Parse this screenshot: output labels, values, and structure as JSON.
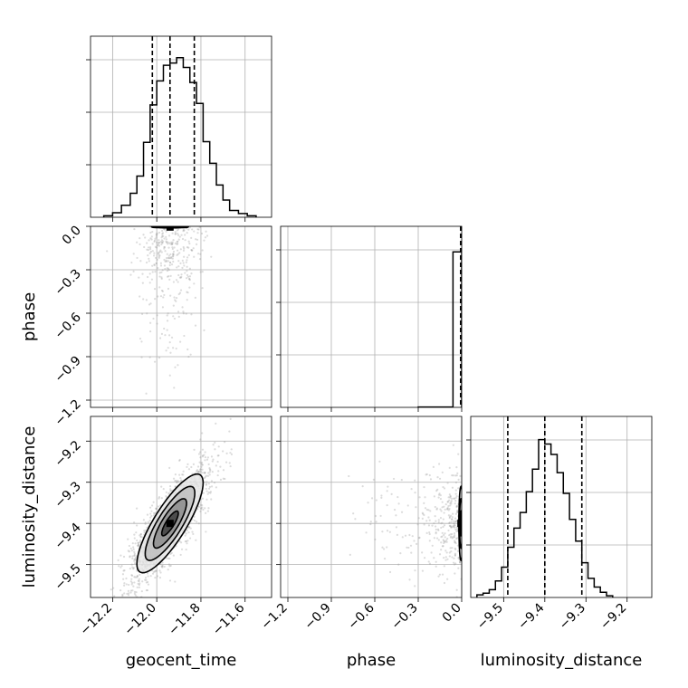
{
  "chart_data": {
    "type": "scatter",
    "kind": "corner-plot",
    "parameters": [
      "geocent_time",
      "phase",
      "luminosity_distance"
    ],
    "axes": {
      "geocent_time": {
        "label": "geocent_time",
        "range": [
          -12.3,
          -11.48
        ],
        "ticks": [
          -12.2,
          -12.0,
          -11.8,
          -11.6
        ],
        "tick_labels": [
          "−12.2",
          "−12.0",
          "−11.8",
          "−11.6"
        ]
      },
      "phase": {
        "label": "phase",
        "range": [
          -1.25,
          0.0
        ],
        "ticks": [
          -1.2,
          -0.9,
          -0.6,
          -0.3,
          0.0
        ],
        "tick_labels": [
          "−1.2",
          "−0.9",
          "−0.6",
          "−0.3",
          "0.0"
        ]
      },
      "luminosity_distance": {
        "label": "luminosity_distance",
        "range": [
          -9.58,
          -9.14
        ],
        "ticks": [
          -9.5,
          -9.4,
          -9.3,
          -9.2
        ],
        "tick_labels": [
          "−9.5",
          "−9.4",
          "−9.3",
          "−9.2"
        ]
      }
    },
    "histograms": {
      "geocent_time": {
        "bin_edges": [
          -12.24,
          -12.2,
          -12.16,
          -12.12,
          -12.09,
          -12.06,
          -12.03,
          -12.0,
          -11.97,
          -11.94,
          -11.91,
          -11.88,
          -11.85,
          -11.82,
          -11.79,
          -11.76,
          -11.73,
          -11.7,
          -11.67,
          -11.63,
          -11.59,
          -11.55
        ],
        "counts": [
          2,
          6,
          16,
          32,
          55,
          100,
          150,
          182,
          203,
          206,
          213,
          200,
          180,
          152,
          101,
          72,
          43,
          23,
          9,
          5,
          2
        ],
        "ymax": 220,
        "quantiles": [
          -12.02,
          -11.94,
          -11.83
        ]
      },
      "phase": {
        "bin_edges": [
          -0.3,
          -0.06,
          0.0
        ],
        "counts": [
          1,
          500
        ],
        "ymax": 530,
        "quantiles": [
          -0.001,
          0.0,
          0.0
        ]
      },
      "luminosity_distance": {
        "bin_edges": [
          -9.565,
          -9.55,
          -9.535,
          -9.52,
          -9.505,
          -9.49,
          -9.475,
          -9.46,
          -9.445,
          -9.43,
          -9.415,
          -9.4,
          -9.385,
          -9.37,
          -9.355,
          -9.34,
          -9.325,
          -9.31,
          -9.295,
          -9.28,
          -9.265,
          -9.25,
          -9.235
        ],
        "counts": [
          3,
          5,
          9,
          19,
          35,
          58,
          80,
          98,
          122,
          148,
          182,
          177,
          165,
          144,
          120,
          90,
          65,
          40,
          22,
          12,
          6,
          2
        ],
        "ymax": 190,
        "quantiles": [
          -9.49,
          -9.4,
          -9.31
        ]
      }
    },
    "joint": [
      {
        "x": "geocent_time",
        "y": "phase",
        "mean": [
          -11.94,
          -0.005
        ],
        "sigma": [
          0.055,
          0.004
        ],
        "corr": 0,
        "contour_levels_sigma": [
          0.5,
          1.0,
          1.5
        ]
      },
      {
        "x": "geocent_time",
        "y": "luminosity_distance",
        "mean": [
          -11.94,
          -9.4
        ],
        "sigma": [
          0.075,
          0.06
        ],
        "corr": 0.82,
        "contour_levels_sigma": [
          0.5,
          1.0,
          1.5,
          2.0
        ]
      },
      {
        "x": "phase",
        "y": "luminosity_distance",
        "mean": [
          -0.005,
          -9.4
        ],
        "sigma": [
          0.008,
          0.05
        ],
        "corr": 0,
        "contour_levels_sigma": [
          0.6,
          1.2,
          1.8
        ]
      }
    ],
    "grid": true
  }
}
